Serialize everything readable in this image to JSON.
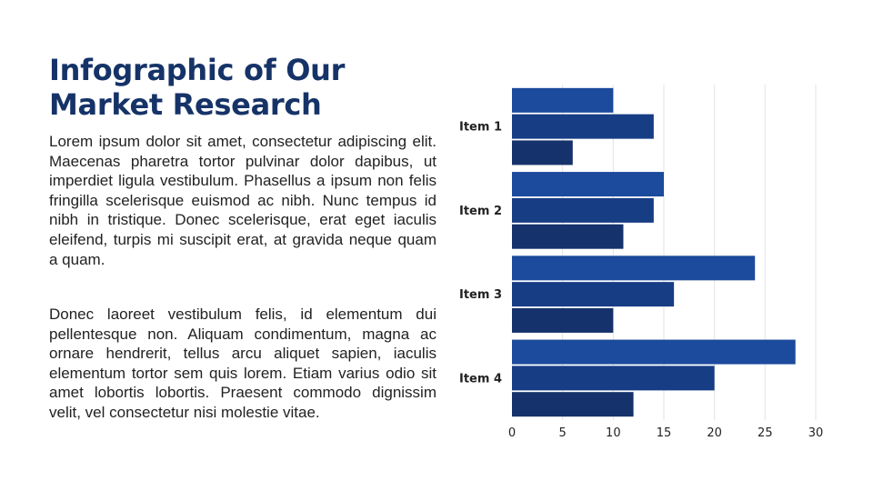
{
  "slide": {
    "title_line1": "Infographic of  Our",
    "title_line2": "Market Research",
    "paragraph1": "Lorem ipsum dolor sit amet, consectetur adipiscing elit. Maecenas pharetra tortor pulvinar dolor dapibus, ut imperdiet ligula vestibulum. Phasellus a ipsum non felis fringilla scelerisque euismod ac nibh. Nunc tempus id nibh in tristique. Donec scelerisque, erat eget iaculis eleifend, turpis mi suscipit erat, at gravida neque quam a quam.",
    "paragraph2": "Donec laoreet vestibulum felis, id elementum dui pellentesque non. Aliquam condimentum, magna ac ornare hendrerit, tellus arcu aliquet sapien, iaculis elementum tortor sem quis lorem. Etiam varius odio sit amet lobortis lobortis. Praesent commodo dignissim velit, vel consectetur nisi molestie vitae."
  },
  "chart_data": {
    "type": "bar",
    "orientation": "horizontal",
    "categories": [
      "Item 1",
      "Item 2",
      "Item 3",
      "Item 4"
    ],
    "series": [
      {
        "values": [
          10,
          15,
          24,
          28
        ],
        "color": "#1c4a9c"
      },
      {
        "values": [
          14,
          14,
          16,
          20
        ],
        "color": "#173d85"
      },
      {
        "values": [
          6,
          11,
          10,
          12
        ],
        "color": "#15326c"
      }
    ],
    "xlim": [
      0,
      30
    ],
    "xticks": [
      0,
      5,
      10,
      15,
      20,
      25,
      30
    ],
    "grid": "vertical",
    "legend": "none"
  }
}
